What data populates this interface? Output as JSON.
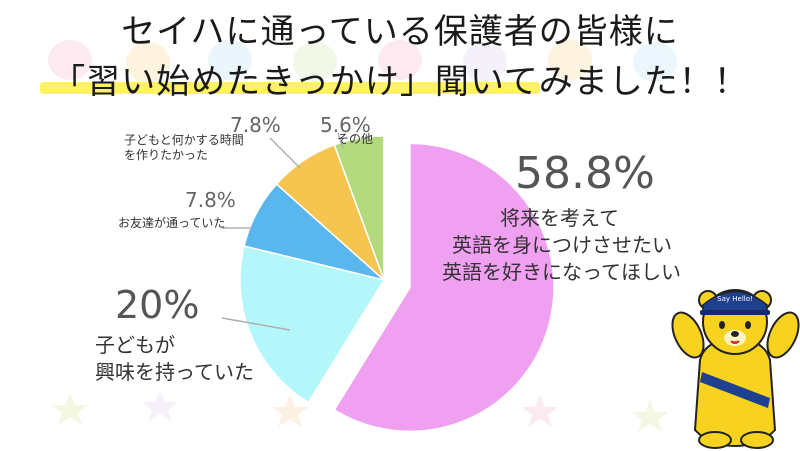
{
  "title": {
    "line1": "セイハに通っている保護者の皆様に",
    "line2": "「習い始めたきっかけ」聞いてみました！！"
  },
  "colors": {
    "accent_underline": "#fff04a",
    "leader_line": "#b0b0b0"
  },
  "chart_data": {
    "type": "pie",
    "title": "",
    "start_angle_deg": 0,
    "direction": "clockwise",
    "slices": [
      {
        "label": "将来を考えて\n英語を身につけさせたい\n英語を好きになってほしい",
        "value": 58.8,
        "value_label": "58.8%",
        "color": "#f0a0f0",
        "exploded": true
      },
      {
        "label": "子どもが\n興味を持っていた",
        "value": 20,
        "value_label": "20%",
        "color": "#b3f7fa",
        "exploded": false
      },
      {
        "label": "お友達が通っていた",
        "value": 7.8,
        "value_label": "7.8%",
        "color": "#5ab7ee",
        "exploded": false
      },
      {
        "label": "子どもと何かする時間\nを作りたかった",
        "value": 7.8,
        "value_label": "7.8%",
        "color": "#f5c54f",
        "exploded": false
      },
      {
        "label": "その他",
        "value": 5.6,
        "value_label": "5.6%",
        "color": "#b3d97e",
        "exploded": false
      }
    ]
  },
  "labels": {
    "s0_pct": "58.8%",
    "s0_line1": "将来を考えて",
    "s0_line2": "英語を身につけさせたい",
    "s0_line3": "英語を好きになってほしい",
    "s1_pct": "20%",
    "s1_line1": "子どもが",
    "s1_line2": "興味を持っていた",
    "s2_pct": "7.8%",
    "s2_line1": "お友達が通っていた",
    "s3_pct": "7.8%",
    "s3_line1": "子どもと何かする時間",
    "s3_line2": "を作りたかった",
    "s4_pct": "5.6%",
    "s4_line1": "その他"
  },
  "mascot": {
    "cap_text": "Say Hello!",
    "body_color": "#f7d21e",
    "cap_color": "#1f3f8f"
  }
}
